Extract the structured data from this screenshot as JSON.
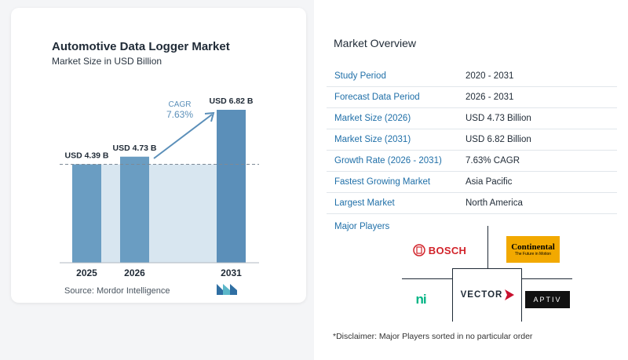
{
  "chart_title": "Automotive Data Logger Market",
  "chart_subtitle": "Market Size in USD Billion",
  "source": "Source:  Mordor Intelligence",
  "chart_data": {
    "type": "bar",
    "categories": [
      "2025",
      "2026",
      "2031"
    ],
    "values": [
      4.39,
      4.73,
      6.82
    ],
    "value_labels": [
      "USD 4.39 B",
      "USD 4.73 B",
      "USD 6.82 B"
    ],
    "title": "Automotive Data Logger Market",
    "subtitle": "Market Size in USD Billion",
    "cagr_label": "CAGR",
    "cagr_value": "7.63%",
    "colors": {
      "bar": "#6a9dc2",
      "bar_last": "#5b8fb9",
      "band": "#d8e6f0",
      "arrow": "#5b8fb9"
    }
  },
  "overview": {
    "title": "Market Overview",
    "rows": [
      {
        "key": "Study Period",
        "value": "2020 - 2031"
      },
      {
        "key": "Forecast Data Period",
        "value": "2026 - 2031"
      },
      {
        "key": "Market Size (2026)",
        "value": "USD 4.73 Billion"
      },
      {
        "key": "Market Size (2031)",
        "value": "USD 6.82 Billion"
      },
      {
        "key": "Growth Rate (2026 - 2031)",
        "value": "7.63% CAGR"
      },
      {
        "key": "Fastest Growing Market",
        "value": "Asia Pacific"
      },
      {
        "key": "Largest Market",
        "value": "North America"
      }
    ]
  },
  "major_players": {
    "title": "Major Players",
    "players": [
      "BOSCH",
      "Continental",
      "VECTOR",
      "APTIV",
      "ni"
    ],
    "continental_tagline": "The Future in Motion"
  },
  "disclaimer": "*Disclaimer: Major Players sorted in no particular order"
}
